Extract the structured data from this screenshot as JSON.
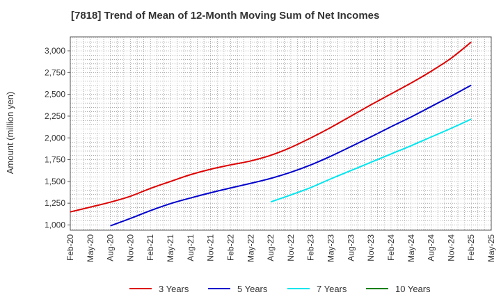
{
  "title": "[7818]  Trend of Mean of 12-Month Moving Sum of Net Incomes",
  "chart_data": {
    "type": "line",
    "title": "[7818]  Trend of Mean of 12-Month Moving Sum of Net Incomes",
    "xlabel": "",
    "ylabel": "Amount (million yen)",
    "x_ticks": [
      "Feb-20",
      "May-20",
      "Aug-20",
      "Nov-20",
      "Feb-21",
      "May-21",
      "Aug-21",
      "Nov-21",
      "Feb-22",
      "May-22",
      "Aug-22",
      "Nov-22",
      "Feb-23",
      "May-23",
      "Aug-23",
      "Nov-23",
      "Feb-24",
      "May-24",
      "Aug-24",
      "Nov-24",
      "Feb-25",
      "May-25"
    ],
    "y_ticks": [
      "1,000",
      "1,250",
      "1,500",
      "1,750",
      "2,000",
      "2,250",
      "2,500",
      "2,750",
      "3,000"
    ],
    "ylim": [
      940,
      3160
    ],
    "grid": true,
    "legend_position": "bottom",
    "series": [
      {
        "name": "3 Years",
        "color": "#dd0000",
        "points": [
          [
            "Feb-20",
            1150
          ],
          [
            "May-20",
            1205
          ],
          [
            "Aug-20",
            1262
          ],
          [
            "Nov-20",
            1330
          ],
          [
            "Feb-21",
            1420
          ],
          [
            "May-21",
            1500
          ],
          [
            "Aug-21",
            1578
          ],
          [
            "Nov-21",
            1640
          ],
          [
            "Feb-22",
            1690
          ],
          [
            "May-22",
            1735
          ],
          [
            "Aug-22",
            1800
          ],
          [
            "Nov-22",
            1890
          ],
          [
            "Feb-23",
            2000
          ],
          [
            "May-23",
            2120
          ],
          [
            "Aug-23",
            2250
          ],
          [
            "Nov-23",
            2380
          ],
          [
            "Feb-24",
            2505
          ],
          [
            "May-24",
            2630
          ],
          [
            "Aug-24",
            2765
          ],
          [
            "Nov-24",
            2915
          ],
          [
            "Feb-25",
            3100
          ]
        ]
      },
      {
        "name": "5 Years",
        "color": "#0000cc",
        "points": [
          [
            "Aug-20",
            990
          ],
          [
            "Nov-20",
            1075
          ],
          [
            "Feb-21",
            1165
          ],
          [
            "May-21",
            1245
          ],
          [
            "Aug-21",
            1310
          ],
          [
            "Nov-21",
            1370
          ],
          [
            "Feb-22",
            1425
          ],
          [
            "May-22",
            1478
          ],
          [
            "Aug-22",
            1535
          ],
          [
            "Nov-22",
            1605
          ],
          [
            "Feb-23",
            1690
          ],
          [
            "May-23",
            1790
          ],
          [
            "Aug-23",
            1900
          ],
          [
            "Nov-23",
            2012
          ],
          [
            "Feb-24",
            2128
          ],
          [
            "May-24",
            2240
          ],
          [
            "Aug-24",
            2360
          ],
          [
            "Nov-24",
            2480
          ],
          [
            "Feb-25",
            2605
          ]
        ]
      },
      {
        "name": "7 Years",
        "color": "#00e5ee",
        "points": [
          [
            "Aug-22",
            1265
          ],
          [
            "Nov-22",
            1345
          ],
          [
            "Feb-23",
            1430
          ],
          [
            "May-23",
            1530
          ],
          [
            "Aug-23",
            1625
          ],
          [
            "Nov-23",
            1720
          ],
          [
            "Feb-24",
            1815
          ],
          [
            "May-24",
            1910
          ],
          [
            "Aug-24",
            2010
          ],
          [
            "Nov-24",
            2110
          ],
          [
            "Feb-25",
            2215
          ]
        ]
      },
      {
        "name": "10 Years",
        "color": "#008000",
        "points": []
      }
    ]
  }
}
